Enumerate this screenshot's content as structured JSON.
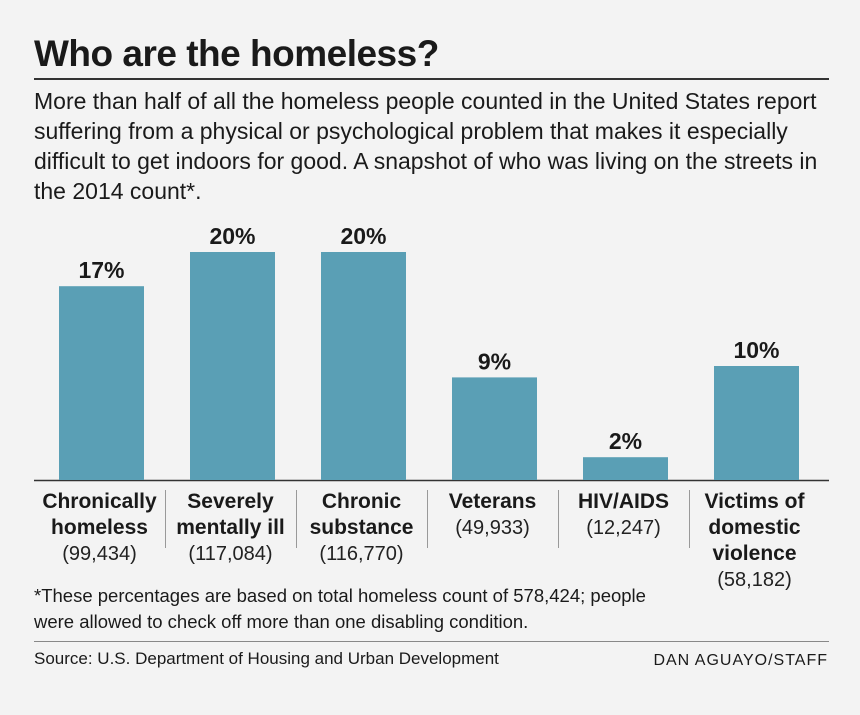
{
  "title": "Who are the homeless?",
  "subtitle": "More than half of all the homeless people counted in the United States report suffering from a physical or psychological problem that makes it especially difficult to get indoors for good. A snapshot of who was living on the streets in the 2014 count*.",
  "chart_data": {
    "type": "bar",
    "categories": [
      {
        "name": "Chronically homeless",
        "count": "(99,434)"
      },
      {
        "name": "Severely mentally ill",
        "count": "(117,084)"
      },
      {
        "name": "Chronic substance",
        "count": "(116,770)"
      },
      {
        "name": "Veterans",
        "count": "(49,933)"
      },
      {
        "name": "HIV/AIDS",
        "count": "(12,247)"
      },
      {
        "name": "Victims of domestic violence",
        "count": "(58,182)"
      }
    ],
    "values": [
      17,
      20,
      20,
      9,
      2,
      10
    ],
    "value_labels": [
      "17%",
      "20%",
      "20%",
      "9%",
      "2%",
      "10%"
    ],
    "unit": "%",
    "ylim": [
      0,
      20
    ],
    "bar_color": "#5a9fb5",
    "grid": false
  },
  "footnote": "*These percentages are based on total homeless count of 578,424; people were allowed to check off more than one disabling condition.",
  "source": "Source: U.S. Department of Housing and Urban Development",
  "credit": "DAN AGUAYO/STAFF"
}
